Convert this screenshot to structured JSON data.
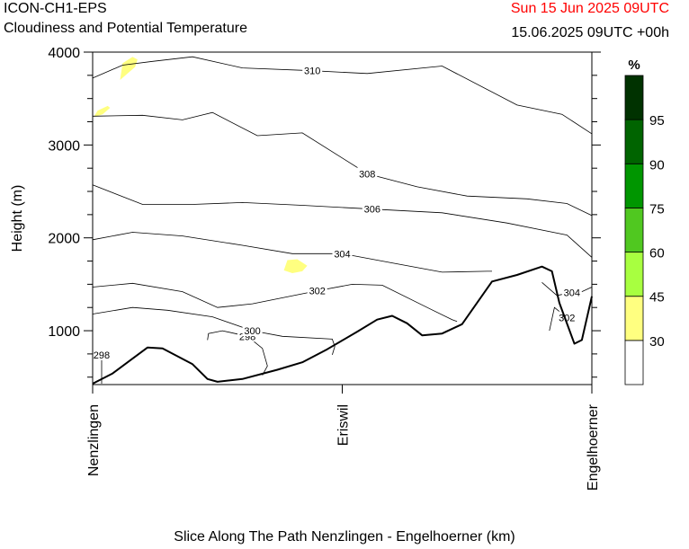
{
  "header": {
    "model": "ICON-CH1-EPS",
    "subtitle": "Cloudiness and Potential Temperature",
    "valid_time": "Sun 15 Jun 2025 09UTC",
    "run_info": "15.06.2025 09UTC +00h"
  },
  "colors": {
    "valid_time": "#ff0000",
    "terrain": "#000000",
    "cloud_30": "#ffff80"
  },
  "chart_data": {
    "type": "contour",
    "xlabel": "Slice Along The Path Nenzlingen - Engelhoerner (km)",
    "ylabel": "Height (m)",
    "ylim": [
      420,
      4000
    ],
    "y_ticks": [
      1000,
      2000,
      3000,
      4000
    ],
    "y_tick_labels": [
      "1000",
      "2000",
      "3000",
      "4000"
    ],
    "x_ticks": [
      "Nenzlingen",
      "Eriswil",
      "Engelhoerner"
    ],
    "colorbar": {
      "unit": "%",
      "levels": [
        "30",
        "45",
        "60",
        "75",
        "90",
        "95"
      ],
      "colors": [
        "#ffffff",
        "#ffff80",
        "#a8ff40",
        "#50c820",
        "#009600",
        "#006400",
        "#003200"
      ]
    },
    "isentropes": [
      {
        "label": "298",
        "x": [
          0,
          0.018,
          0.018
        ],
        "y": [
          740,
          740,
          430
        ]
      },
      {
        "label": "298",
        "x": [
          0.23,
          0.232,
          0.26,
          0.31,
          0.34,
          0.35,
          0.34
        ],
        "y": [
          900,
          970,
          1000,
          940,
          810,
          620,
          520
        ]
      },
      {
        "label": "300",
        "x": [
          0,
          0.08,
          0.15,
          0.24,
          0.32,
          0.38,
          0.48,
          0.485,
          0.48
        ],
        "y": [
          1180,
          1250,
          1220,
          1150,
          1000,
          940,
          910,
          830,
          740
        ]
      },
      {
        "label": "302",
        "x": [
          0,
          0.08,
          0.18,
          0.25,
          0.32,
          0.45,
          0.52,
          0.58,
          0.67,
          0.72,
          0.73
        ],
        "y": [
          1470,
          1510,
          1420,
          1250,
          1290,
          1430,
          1500,
          1490,
          1250,
          1120,
          1100
        ]
      },
      {
        "label": "302",
        "x": [
          0.915,
          0.925,
          0.95,
          0.96
        ],
        "y": [
          1000,
          1250,
          1140,
          1160
        ]
      },
      {
        "label": "304",
        "x": [
          0,
          0.08,
          0.18,
          0.3,
          0.4,
          0.5,
          0.6,
          0.7,
          0.79,
          0.8
        ],
        "y": [
          1980,
          2060,
          2020,
          1920,
          1830,
          1830,
          1730,
          1630,
          1640,
          1640
        ]
      },
      {
        "label": "304",
        "x": [
          0.9,
          0.93,
          0.96,
          0.98,
          1.0
        ],
        "y": [
          1520,
          1380,
          1410,
          1420,
          1470
        ]
      },
      {
        "label": "306",
        "x": [
          0,
          0.1,
          0.2,
          0.3,
          0.42,
          0.56,
          0.7,
          0.83,
          0.95,
          1.0
        ],
        "y": [
          2570,
          2360,
          2360,
          2380,
          2350,
          2310,
          2270,
          2160,
          2030,
          1790
        ]
      },
      {
        "label": "308",
        "x": [
          0,
          0.1,
          0.18,
          0.24,
          0.33,
          0.42,
          0.55,
          0.65,
          0.75,
          0.87,
          0.95,
          1.0
        ],
        "y": [
          3310,
          3320,
          3270,
          3350,
          3100,
          3130,
          2690,
          2550,
          2450,
          2420,
          2370,
          2240
        ]
      },
      {
        "label": "310",
        "x": [
          0,
          0.06,
          0.12,
          0.2,
          0.3,
          0.44,
          0.55,
          0.7,
          0.85,
          0.94,
          1.0
        ],
        "y": [
          3720,
          3860,
          3900,
          3950,
          3830,
          3800,
          3770,
          3850,
          3430,
          3330,
          3120
        ]
      }
    ],
    "terrain": {
      "x": [
        0,
        0.04,
        0.08,
        0.11,
        0.14,
        0.2,
        0.23,
        0.25,
        0.3,
        0.37,
        0.42,
        0.47,
        0.53,
        0.57,
        0.6,
        0.63,
        0.66,
        0.7,
        0.74,
        0.8,
        0.85,
        0.9,
        0.92,
        0.935,
        0.965,
        0.98,
        1.0
      ],
      "y": [
        430,
        540,
        700,
        820,
        810,
        640,
        480,
        450,
        480,
        580,
        660,
        800,
        990,
        1120,
        1160,
        1080,
        950,
        970,
        1070,
        1530,
        1600,
        1690,
        1640,
        1300,
        860,
        900,
        1370
      ]
    },
    "cloud_patches": [
      {
        "level": "30",
        "x": [
          0.055,
          0.085,
          0.09,
          0.08,
          0.06,
          0.055
        ],
        "y": [
          3700,
          3840,
          3920,
          3950,
          3880,
          3700
        ]
      },
      {
        "level": "30",
        "x": [
          0.002,
          0.02,
          0.035,
          0.03,
          0.01,
          0.002
        ],
        "y": [
          3300,
          3330,
          3400,
          3420,
          3370,
          3300
        ]
      },
      {
        "level": "30",
        "x": [
          0.383,
          0.4,
          0.42,
          0.43,
          0.41,
          0.39,
          0.383
        ],
        "y": [
          1650,
          1620,
          1640,
          1700,
          1770,
          1760,
          1650
        ]
      }
    ]
  }
}
